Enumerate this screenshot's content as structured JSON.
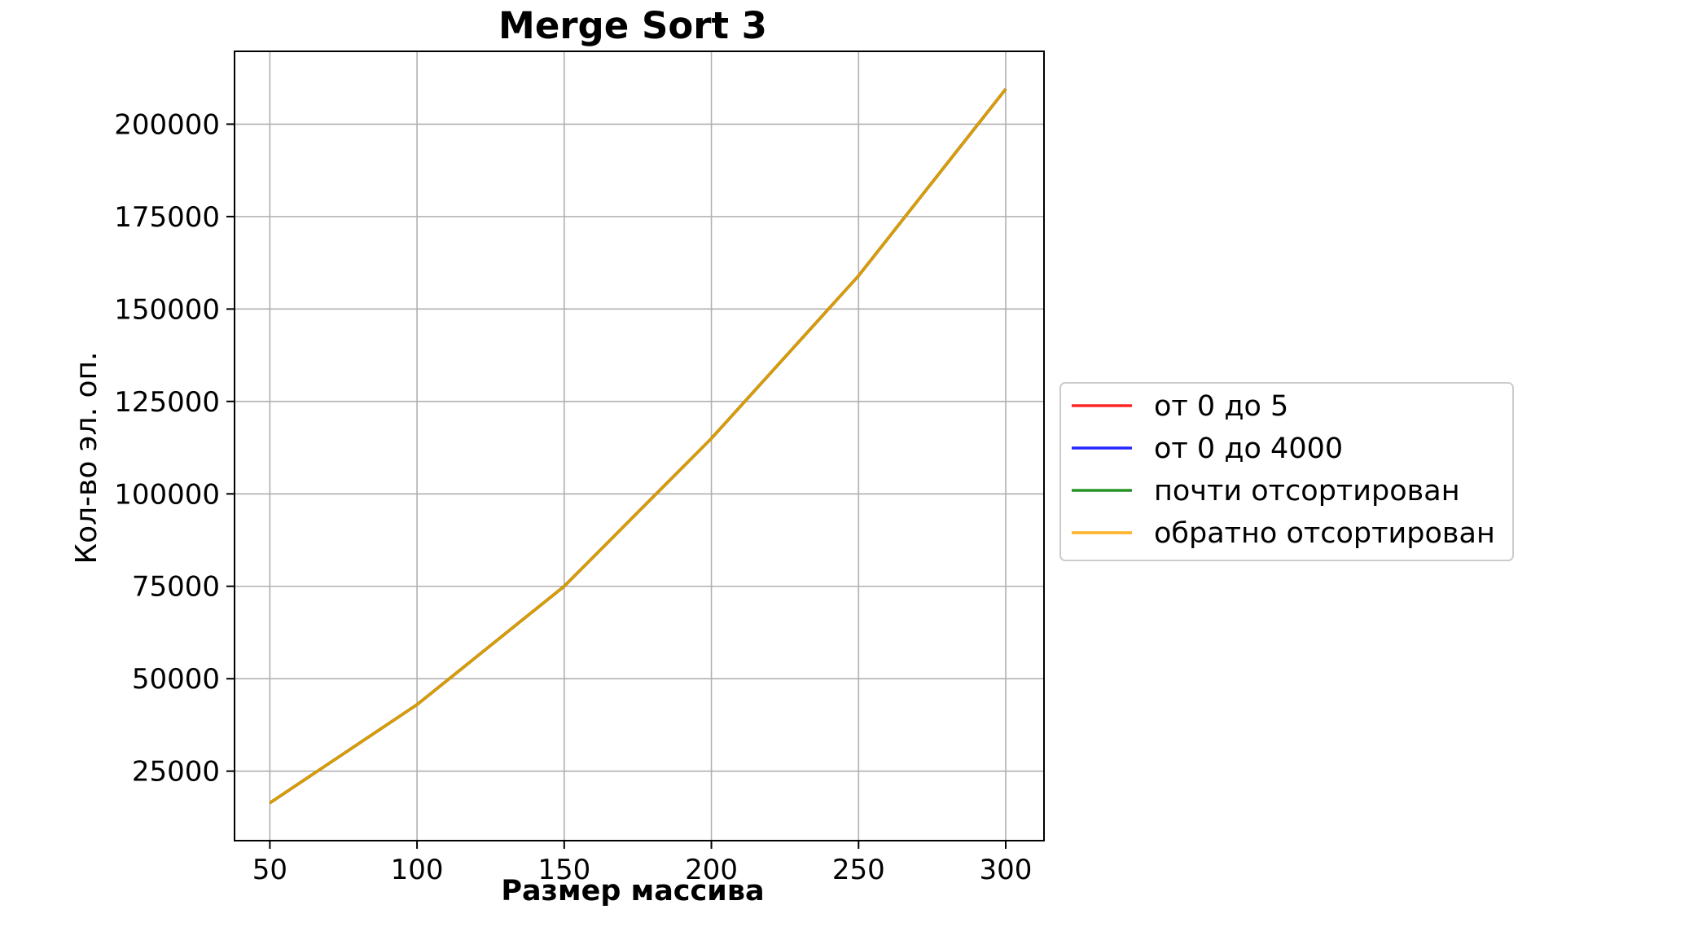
{
  "chart_data": {
    "type": "line",
    "title": "Merge Sort 3",
    "xlabel": "Размер массива",
    "ylabel": "Кол-во эл. оп.",
    "x": [
      50,
      100,
      150,
      200,
      250,
      300
    ],
    "series": [
      {
        "name": "от 0 до 5",
        "color": "#ff0000",
        "values": [
          16400,
          43000,
          75000,
          115000,
          159000,
          209500
        ]
      },
      {
        "name": "от 0 до 4000",
        "color": "#0000ff",
        "values": [
          16400,
          43000,
          75000,
          115000,
          159000,
          209500
        ]
      },
      {
        "name": "почти отсортирован",
        "color": "#008000",
        "values": [
          16400,
          43000,
          75000,
          115000,
          159000,
          209500
        ]
      },
      {
        "name": "обратно отсортирован",
        "color": "#ffa500",
        "values": [
          16400,
          43000,
          75000,
          115000,
          159000,
          209500
        ]
      }
    ],
    "xlim": [
      38,
      313
    ],
    "ylim": [
      6200,
      219700
    ],
    "xticks": [
      "50",
      "100",
      "150",
      "200",
      "250",
      "300"
    ],
    "yticks": [
      "25000",
      "50000",
      "75000",
      "100000",
      "125000",
      "150000",
      "175000",
      "200000"
    ],
    "grid": true,
    "legend_position": "outside-right"
  }
}
